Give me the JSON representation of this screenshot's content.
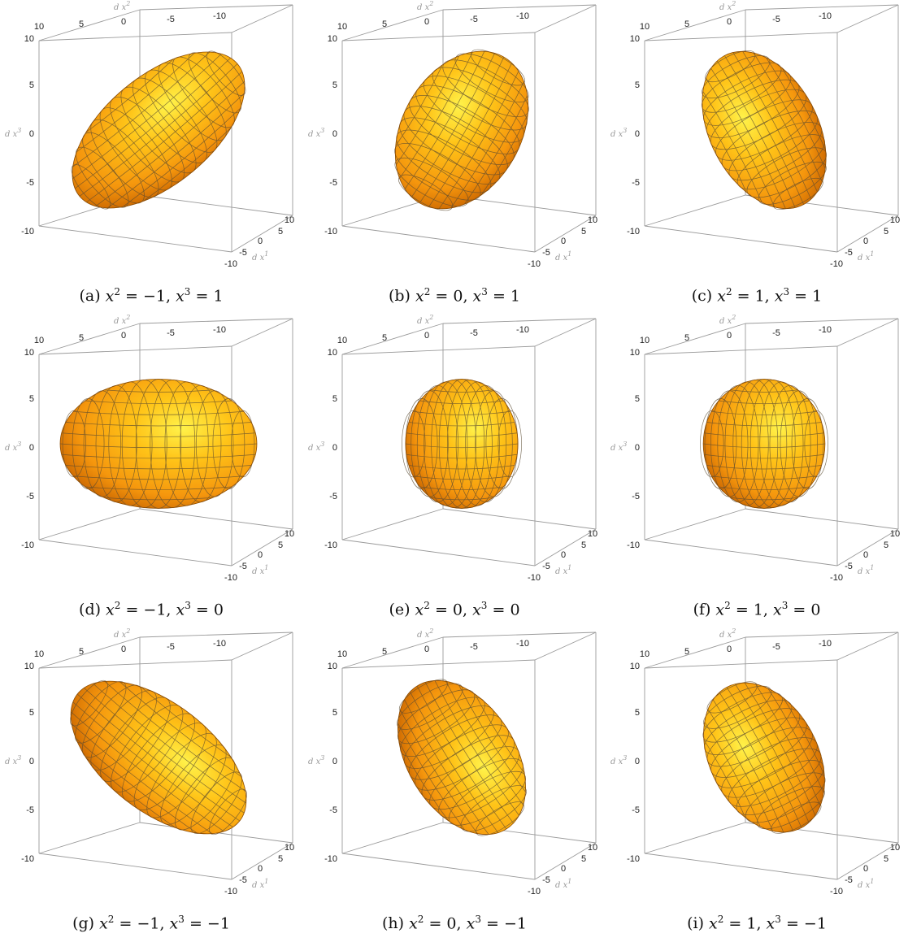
{
  "figure": {
    "axis_labels": {
      "top": [
        "d",
        "x",
        "2"
      ],
      "left": [
        "d",
        "x",
        "3"
      ],
      "depth": [
        "d",
        "x",
        "1"
      ]
    },
    "ticks": {
      "top": [
        "10",
        "5",
        "0",
        "-5",
        "-10"
      ],
      "left": [
        "10",
        "5",
        "0",
        "-5",
        "-10"
      ],
      "depth": [
        "10",
        "5",
        "0",
        "-5",
        "-10"
      ]
    },
    "surface_colors": [
      "#fff24a",
      "#ffc418",
      "#f5960d",
      "#c86400"
    ],
    "mesh_color": "#5a4a30",
    "panels": [
      {
        "label": "(a)",
        "var": "x",
        "x2": "= −1,",
        "x3": "= 1",
        "a": 22,
        "b": 10,
        "rot": -40,
        "cx": 0,
        "cy": 0
      },
      {
        "label": "(b)",
        "var": "x",
        "x2": "= 0,",
        "x3": "= 1",
        "a": 18,
        "b": 11,
        "rot": -60,
        "cx": 0,
        "cy": 0
      },
      {
        "label": "(c)",
        "var": "x",
        "x2": "= 1,",
        "x3": "= 1",
        "a": 18,
        "b": 10,
        "rot": -118,
        "cx": 0,
        "cy": 0
      },
      {
        "label": "(d)",
        "var": "x",
        "x2": "= −1,",
        "x3": "= 0",
        "a": 21,
        "b": 12,
        "rot": 0,
        "cx": 0,
        "cy": 0
      },
      {
        "label": "(e)",
        "var": "x",
        "x2": "= 0,",
        "x3": "= 0",
        "a": 12,
        "b": 12,
        "rot": 0,
        "cx": 0,
        "cy": 0
      },
      {
        "label": "(f)",
        "var": "x",
        "x2": "= 1,",
        "x3": "= 0",
        "a": 13,
        "b": 12,
        "rot": 0,
        "cx": 0,
        "cy": 0
      },
      {
        "label": "(g)",
        "var": "x",
        "x2": "= −1,",
        "x3": "= −1",
        "a": 22,
        "b": 10,
        "rot": 38,
        "cx": 0,
        "cy": 0
      },
      {
        "label": "(h)",
        "var": "x",
        "x2": "= 0,",
        "x3": "= −1",
        "a": 18,
        "b": 10,
        "rot": 58,
        "cx": 0,
        "cy": 0
      },
      {
        "label": "(i)",
        "var": "x",
        "x2": "= 1,",
        "x3": "= −1",
        "a": 17,
        "b": 10,
        "rot": -118,
        "cx": 0,
        "cy": 0
      }
    ]
  }
}
